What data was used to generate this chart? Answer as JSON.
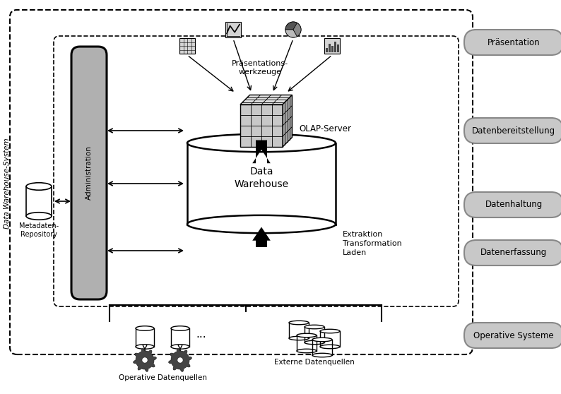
{
  "bg_color": "#f0f0f0",
  "white": "#ffffff",
  "black": "#000000",
  "admin_gray": "#b0b0b0",
  "pill_fc": "#c8c8c8",
  "pill_ec": "#888888",
  "cube_front": "#c8c8c8",
  "cube_top": "#e0e0e0",
  "cube_right": "#a8a8a8",
  "title": "Data Warehouse-System",
  "right_labels": [
    "Präsentation",
    "Datenbereitstellung",
    "Datenhaltung",
    "Datenerfassung",
    "Operative Systeme"
  ]
}
